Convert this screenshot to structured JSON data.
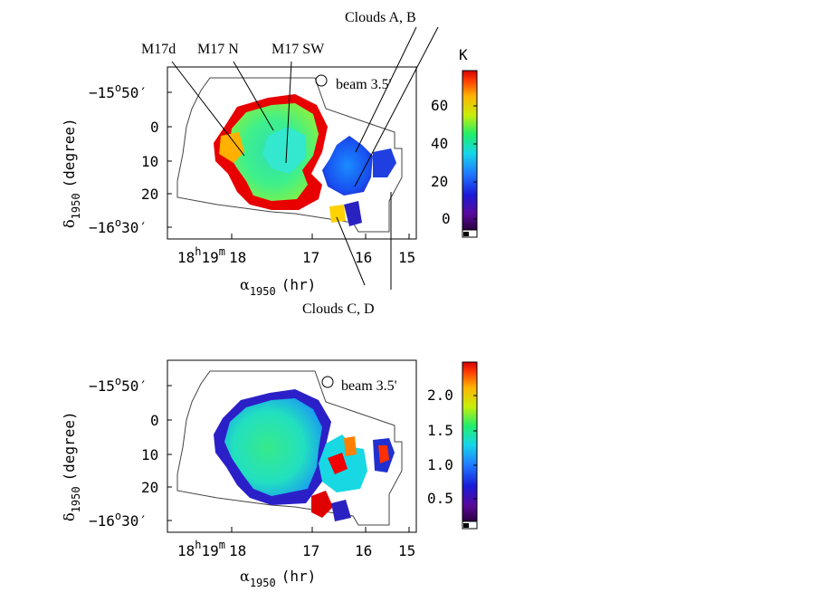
{
  "colors": {
    "rainbow_stops": [
      "#ffffff",
      "#6a0a8a",
      "#1f10c9",
      "#1f6dff",
      "#17d9ee",
      "#1df06a",
      "#c4ef0a",
      "#ffc800",
      "#ff5a00",
      "#e30000"
    ]
  },
  "top_panel": {
    "annotations": {
      "m17d": "M17d",
      "m17n": "M17 N",
      "m17sw": "M17 SW",
      "clouds_ab": "Clouds A, B",
      "clouds_cd": "Clouds C, D",
      "beam": "beam 3.5'"
    },
    "y_ticks": {
      "t1_hours": "−15",
      "t1_min": "50",
      "t2": "0",
      "t3": "10",
      "t4": "20",
      "t5_hours": "−16",
      "t5_min": "30"
    },
    "x_ticks": {
      "t1_h": "18",
      "t1_m": "19",
      "t1_tail": "18",
      "t2": "17",
      "t3": "16",
      "t4": "15"
    },
    "xlabel_alpha": "α",
    "xlabel_sub": "1950",
    "xlabel_unit": "(hr)",
    "ylabel_delta": "δ",
    "ylabel_sub": "1950",
    "ylabel_unit": "(degree)",
    "colorbar": {
      "unit": "K",
      "ticks": [
        "60",
        "40",
        "20",
        "0"
      ]
    }
  },
  "bottom_panel": {
    "annotations": {
      "beam": "beam 3.5'"
    },
    "y_ticks": {
      "t1_hours": "−15",
      "t1_min": "50",
      "t2": "0",
      "t3": "10",
      "t4": "20",
      "t5_hours": "−16",
      "t5_min": "30"
    },
    "x_ticks": {
      "t1_h": "18",
      "t1_m": "19",
      "t1_tail": "18",
      "t2": "17",
      "t3": "16",
      "t4": "15"
    },
    "xlabel_alpha": "α",
    "xlabel_sub": "1950",
    "xlabel_unit": "(hr)",
    "ylabel_delta": "δ",
    "ylabel_sub": "1950",
    "ylabel_unit": "(degree)",
    "colorbar": {
      "ticks": [
        "2.0",
        "1.5",
        "1.0",
        "0.5"
      ]
    }
  }
}
